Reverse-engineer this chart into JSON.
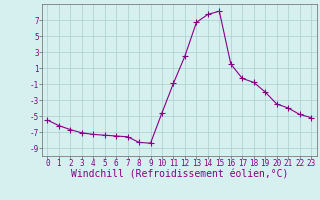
{
  "x": [
    0,
    1,
    2,
    3,
    4,
    5,
    6,
    7,
    8,
    9,
    10,
    11,
    12,
    13,
    14,
    15,
    16,
    17,
    18,
    19,
    20,
    21,
    22,
    23
  ],
  "y": [
    -5.5,
    -6.2,
    -6.7,
    -7.1,
    -7.3,
    -7.4,
    -7.5,
    -7.6,
    -8.3,
    -8.4,
    -4.6,
    -0.9,
    2.5,
    6.7,
    7.7,
    8.1,
    1.5,
    -0.3,
    -0.8,
    -2.0,
    -3.5,
    -4.0,
    -4.8,
    -5.2
  ],
  "line_color": "#880088",
  "marker": "+",
  "marker_size": 4,
  "bg_color": "#d6f0f0",
  "grid_color": "#aacece",
  "xlabel": "Windchill (Refroidissement éolien,°C)",
  "xlim": [
    -0.5,
    23.5
  ],
  "ylim": [
    -10,
    9
  ],
  "yticks": [
    -9,
    -7,
    -5,
    -3,
    -1,
    1,
    3,
    5,
    7
  ],
  "xticks": [
    0,
    1,
    2,
    3,
    4,
    5,
    6,
    7,
    8,
    9,
    10,
    11,
    12,
    13,
    14,
    15,
    16,
    17,
    18,
    19,
    20,
    21,
    22,
    23
  ],
  "tick_label_size": 5.5,
  "xlabel_size": 7.0,
  "spine_color": "#666666",
  "linewidth": 0.8
}
